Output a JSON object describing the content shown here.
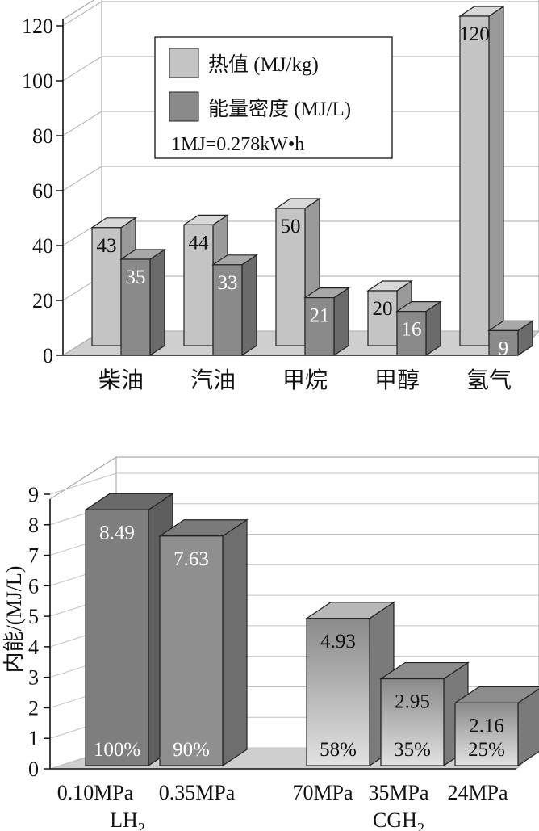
{
  "chart_data": [
    {
      "type": "bar",
      "categories": [
        "柴油",
        "汽油",
        "甲烷",
        "甲醇",
        "氢气"
      ],
      "series": [
        {
          "name": "热值 (MJ/kg)",
          "values": [
            43,
            44,
            50,
            20,
            120
          ]
        },
        {
          "name": "能量密度 (MJ/L)",
          "values": [
            35,
            33,
            21,
            16,
            9
          ]
        }
      ],
      "ylim": [
        0,
        120
      ],
      "yticks": [
        0,
        20,
        40,
        60,
        80,
        100,
        120
      ],
      "note": "1MJ=0.278kW•h",
      "legend_position": "top-center",
      "grid": true,
      "colors": {
        "series1": "#c4c4c4",
        "series2": "#8a8a8a"
      }
    },
    {
      "type": "bar",
      "categories": [
        "0.10MPa",
        "0.35MPa",
        "70MPa",
        "35MPa",
        "24MPa"
      ],
      "groups": [
        {
          "label_main": "LH",
          "label_sub": "2"
        },
        {
          "label_main": "CGH",
          "label_sub": "2"
        }
      ],
      "values": [
        8.49,
        7.63,
        4.93,
        2.95,
        2.16
      ],
      "percent_labels": [
        "100%",
        "90%",
        "58%",
        "35%",
        "25%"
      ],
      "ylabel": "内能/(MJ/L)",
      "ylim": [
        0,
        9
      ],
      "yticks": [
        0,
        1,
        2,
        3,
        4,
        5,
        6,
        7,
        8,
        9
      ],
      "grid": true,
      "colors": {
        "dark": "#7e7e7e",
        "mid": "#8f8f8f",
        "light": "#e2e2e2"
      }
    }
  ]
}
